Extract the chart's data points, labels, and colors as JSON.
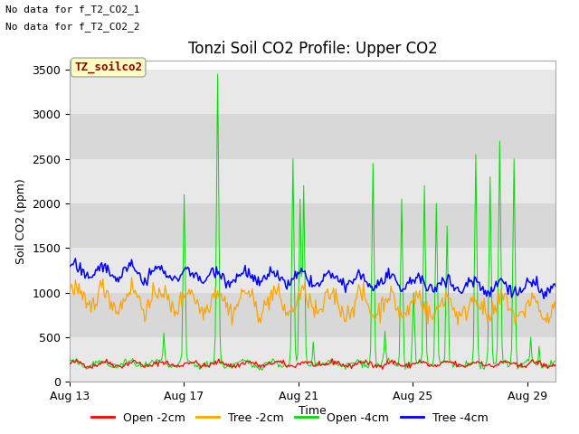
{
  "title": "Tonzi Soil CO2 Profile: Upper CO2",
  "ylabel": "Soil CO2 (ppm)",
  "xlabel": "Time",
  "no_data_text": [
    "No data for f_T2_CO2_1",
    "No data for f_T2_CO2_2"
  ],
  "legend_box_label": "TZ_soilco2",
  "legend_entries": [
    "Open -2cm",
    "Tree -2cm",
    "Open -4cm",
    "Tree -4cm"
  ],
  "legend_colors": [
    "#ff0000",
    "#ffa500",
    "#00dd00",
    "#0000ff"
  ],
  "ylim": [
    0,
    3600
  ],
  "yticks": [
    0,
    500,
    1000,
    1500,
    2000,
    2500,
    3000,
    3500
  ],
  "xtick_labels": [
    "Aug 13",
    "Aug 17",
    "Aug 21",
    "Aug 25",
    "Aug 29"
  ],
  "xtick_positions": [
    0,
    4,
    8,
    12,
    16
  ],
  "stripe_colors": [
    "#e8e8e8",
    "#d8d8d8"
  ],
  "title_fontsize": 12,
  "axis_label_fontsize": 9,
  "tick_fontsize": 9,
  "nodata_fontsize": 8,
  "legend_fontsize": 9
}
